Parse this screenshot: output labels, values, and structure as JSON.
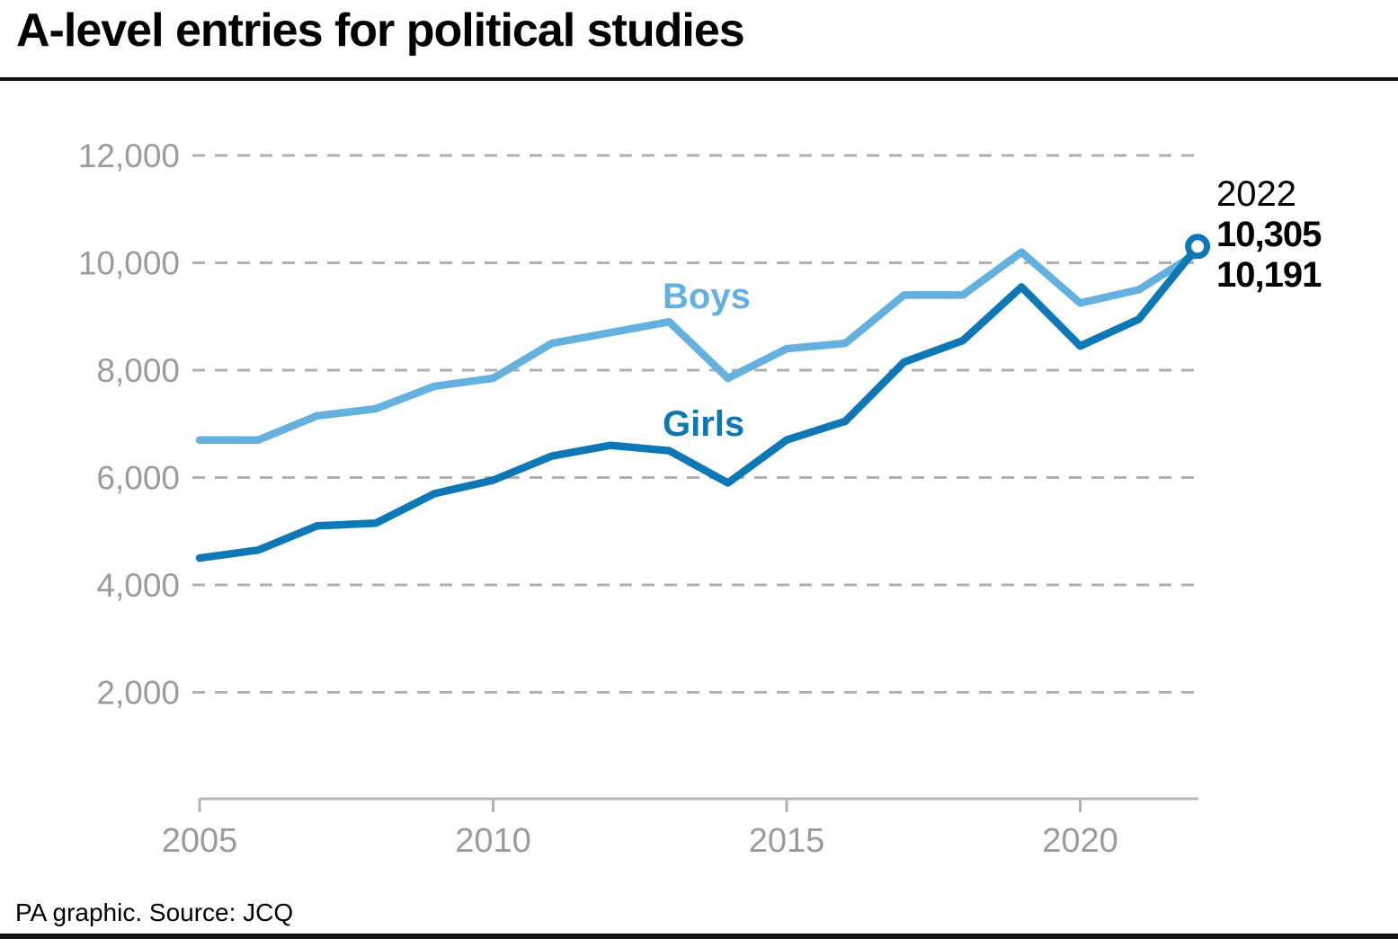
{
  "header": {
    "title": "A-level entries for political studies"
  },
  "footer": {
    "source": "PA graphic. Source: JCQ"
  },
  "colors": {
    "boys": "#64b1e0",
    "girls": "#0e78b6",
    "grid": "#b0b0b0",
    "axis": "#b3b3b3",
    "tick_label": "#9b9b9b",
    "annotation_text": "#000000",
    "background": "#ffffff"
  },
  "chart_data": {
    "type": "line",
    "title": "A-level entries for political studies",
    "xlabel": "",
    "ylabel": "",
    "x": [
      2005,
      2006,
      2007,
      2008,
      2009,
      2010,
      2011,
      2012,
      2013,
      2014,
      2015,
      2016,
      2017,
      2018,
      2019,
      2020,
      2021,
      2022
    ],
    "series": [
      {
        "name": "Boys",
        "color_key": "boys",
        "values": [
          6700,
          6700,
          7150,
          7280,
          7700,
          7850,
          8500,
          8700,
          8900,
          7850,
          8400,
          8500,
          9400,
          9400,
          10200,
          9250,
          9500,
          10191
        ]
      },
      {
        "name": "Girls",
        "color_key": "girls",
        "values": [
          4500,
          4650,
          5100,
          5150,
          5700,
          5950,
          6400,
          6600,
          6500,
          5900,
          6700,
          7050,
          8150,
          8550,
          9550,
          8450,
          8950,
          10305
        ]
      }
    ],
    "ylim": [
      0,
      12000
    ],
    "xlim": [
      2005,
      2022
    ],
    "grid": "horizontal-dashed",
    "legend_position": "inline-labels",
    "y_ticks": [
      {
        "value": 2000,
        "label": "2,000"
      },
      {
        "value": 4000,
        "label": "4,000"
      },
      {
        "value": 6000,
        "label": "6,000"
      },
      {
        "value": 8000,
        "label": "8,000"
      },
      {
        "value": 10000,
        "label": "10,000"
      },
      {
        "value": 12000,
        "label": "12,000"
      }
    ],
    "x_ticks": [
      {
        "value": 2005,
        "label": "2005"
      },
      {
        "value": 2010,
        "label": "2010"
      },
      {
        "value": 2015,
        "label": "2015"
      },
      {
        "value": 2020,
        "label": "2020"
      }
    ],
    "annotation": {
      "year": "2022",
      "girls_value": "10,305",
      "boys_value": "10,191"
    },
    "end_marker": {
      "series": "Girls",
      "year": 2022
    }
  }
}
